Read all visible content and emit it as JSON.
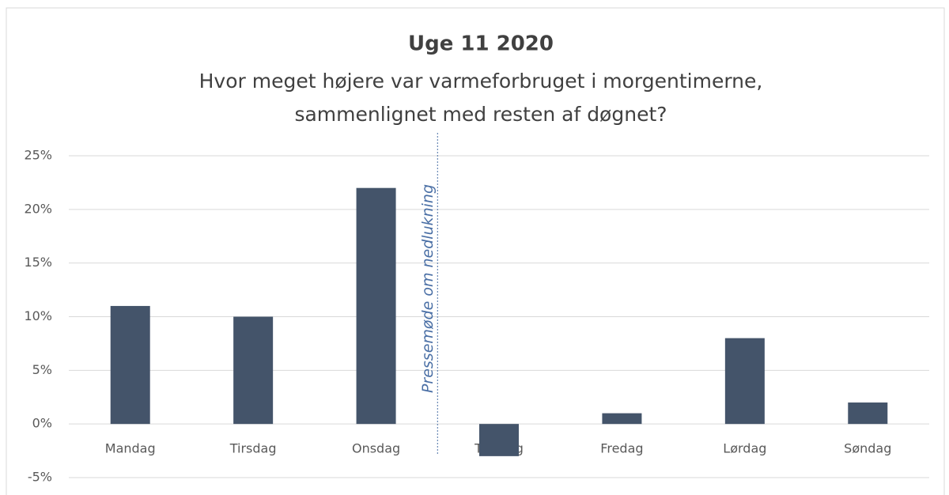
{
  "chart_data": {
    "type": "bar",
    "title": "Uge 11 2020",
    "subtitle": [
      "Hvor meget højere var varmeforbruget i morgentimerne,",
      "sammenlignet med resten af døgnet?"
    ],
    "categories": [
      "Mandag",
      "Tirsdag",
      "Onsdag",
      "Torsdag",
      "Fredag",
      "Lørdag",
      "Søndag"
    ],
    "values": [
      11,
      10,
      22,
      -3,
      1,
      8,
      2
    ],
    "color": "#44546a",
    "ylim": [
      -5,
      25
    ],
    "yticks": [
      {
        "value": -5,
        "label": "-5%"
      },
      {
        "value": 0,
        "label": "0%"
      },
      {
        "value": 5,
        "label": "5%"
      },
      {
        "value": 10,
        "label": "10%"
      },
      {
        "value": 15,
        "label": "15%"
      },
      {
        "value": 20,
        "label": "20%"
      },
      {
        "value": 25,
        "label": "25%"
      }
    ],
    "grid": true,
    "annotation": "Pressemøde om nedlukning"
  }
}
